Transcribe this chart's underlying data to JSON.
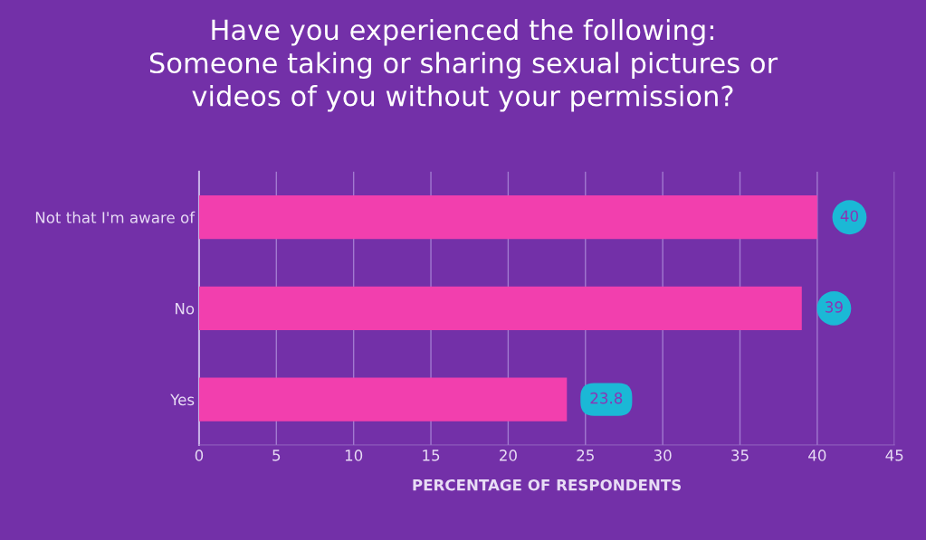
{
  "chart_data": {
    "type": "bar",
    "orientation": "horizontal",
    "title": "Have you experienced the following:\nSomeone taking or sharing sexual pictures or\nvideos of you without your permission?",
    "xlabel": "PERCENTAGE OF RESPONDENTS",
    "categories": [
      "Not that I'm aware of",
      "No",
      "Yes"
    ],
    "values": [
      40,
      39,
      23.8
    ],
    "color": "#f23fae",
    "xlim": [
      0,
      45
    ],
    "xticks": [
      0,
      5,
      10,
      15,
      20,
      25,
      30,
      35,
      40,
      45
    ],
    "grid": "x",
    "data_labels": true,
    "legend": false
  }
}
